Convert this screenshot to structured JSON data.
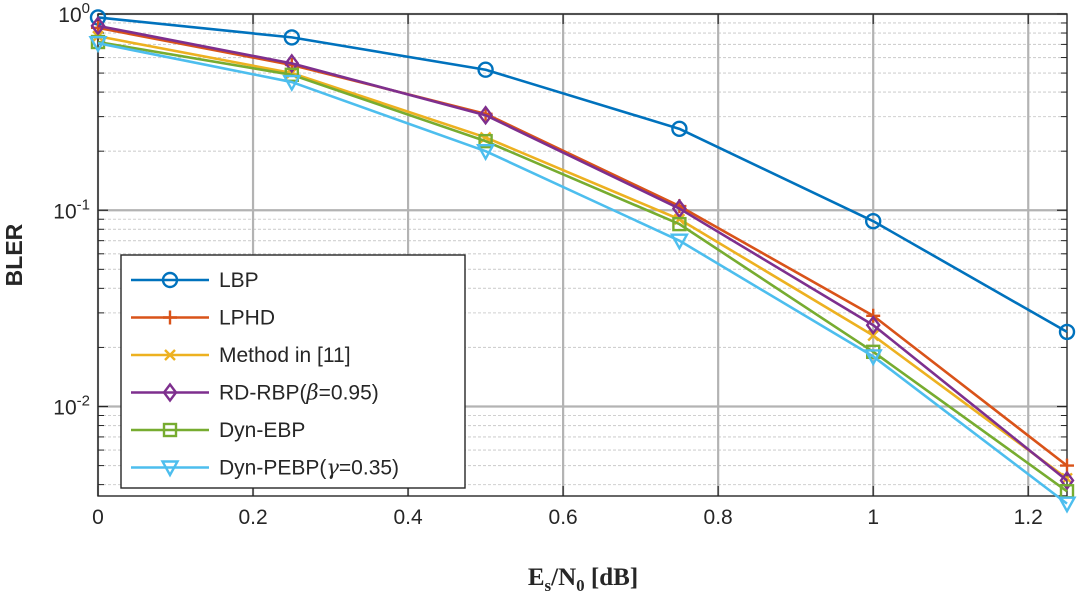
{
  "chart_data": {
    "type": "line",
    "yscale": "log",
    "xlabel": "E_s/N_0 [dB]",
    "xlabel_parts": {
      "E": "E",
      "s": "s",
      "slash": "/",
      "N": "N",
      "zero": "0",
      "unit": " [dB]"
    },
    "ylabel": "BLER",
    "xlim": [
      0,
      1.25
    ],
    "ylim": [
      0.0035,
      1.0
    ],
    "x_ticks": [
      0,
      0.2,
      0.4,
      0.6,
      0.8,
      1.0,
      1.2
    ],
    "x_tick_labels": [
      "0",
      "0.2",
      "0.4",
      "0.6",
      "0.8",
      "1",
      "1.2"
    ],
    "y_major_ticks": [
      {
        "value": 1.0,
        "base": "10",
        "exp": "0"
      },
      {
        "value": 0.1,
        "base": "10",
        "exp": "-1"
      },
      {
        "value": 0.01,
        "base": "10",
        "exp": "-2"
      }
    ],
    "grid": true,
    "legend_position": "bottom-left",
    "x": [
      0,
      0.25,
      0.5,
      0.75,
      1.0,
      1.25
    ],
    "series": [
      {
        "name": "LBP",
        "marker": "circle",
        "color": "#0072BD",
        "values": [
          0.96,
          0.76,
          0.52,
          0.26,
          0.088,
          0.024
        ]
      },
      {
        "name": "LPHD",
        "marker": "plus",
        "color": "#D95319",
        "values": [
          0.85,
          0.55,
          0.31,
          0.105,
          0.029,
          0.005
        ]
      },
      {
        "name": "Method in [11]",
        "marker": "x",
        "color": "#EDB120",
        "values": [
          0.77,
          0.5,
          0.235,
          0.09,
          0.023,
          0.0043
        ]
      },
      {
        "name": "RD-RBP(β=0.95)",
        "name_parts": {
          "before": "RD-RBP(",
          "symbol": "β",
          "after": "=0.95)"
        },
        "marker": "diamond",
        "color": "#7E2F8E",
        "values": [
          0.87,
          0.56,
          0.305,
          0.102,
          0.026,
          0.0042
        ]
      },
      {
        "name": "Dyn-EBP",
        "marker": "square",
        "color": "#77AC30",
        "values": [
          0.72,
          0.49,
          0.225,
          0.085,
          0.019,
          0.0037
        ]
      },
      {
        "name": "Dyn-PEBP(γ=0.35)",
        "name_parts": {
          "before": "Dyn-PEBP(",
          "symbol": "γ",
          "after": "=0.35)"
        },
        "marker": "triangle-down",
        "color": "#4DBEEE",
        "values": [
          0.71,
          0.45,
          0.2,
          0.07,
          0.018,
          0.0032
        ]
      }
    ]
  }
}
